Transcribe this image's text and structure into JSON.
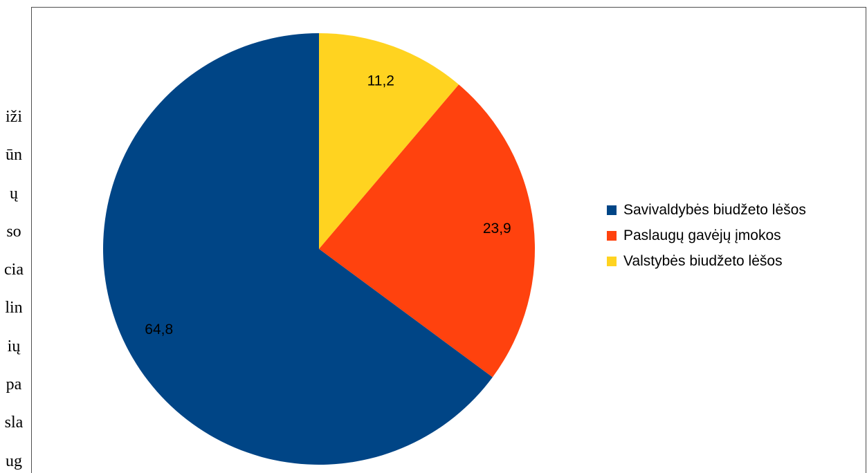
{
  "side_text": {
    "lines": [
      "iži",
      "ūn",
      "ų",
      "so",
      "cia",
      "lin",
      "ių",
      "pa",
      "sla",
      "ug"
    ]
  },
  "chart_data": {
    "type": "pie",
    "title": "",
    "start_angle_deg": 0,
    "direction": "clockwise",
    "legend_position": "right",
    "slices": [
      {
        "label": "Valstybės biudžeto lėšos",
        "value": 11.2,
        "display": "11,2",
        "color": "#ffd320"
      },
      {
        "label": "Paslaugų gavėjų įmokos",
        "value": 23.9,
        "display": "23,9",
        "color": "#ff420e"
      },
      {
        "label": "Savivaldybės biudžeto lėšos",
        "value": 64.8,
        "display": "64,8",
        "color": "#004586"
      }
    ],
    "legend": [
      {
        "label": "Savivaldybės biudžeto lėšos",
        "color": "#004586"
      },
      {
        "label": "Paslaugų gavėjų įmokos",
        "color": "#ff420e"
      },
      {
        "label": "Valstybės biudžeto lėšos",
        "color": "#ffd320"
      }
    ]
  }
}
